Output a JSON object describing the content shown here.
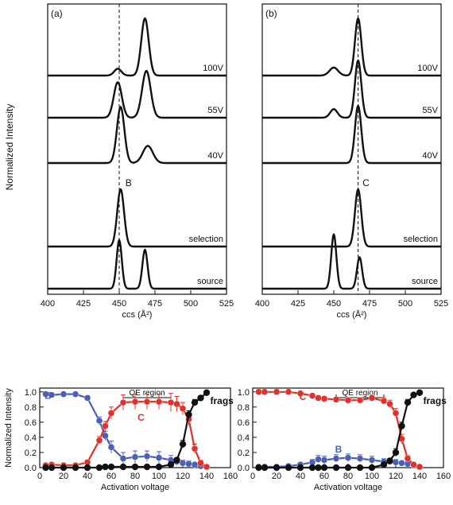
{
  "figure": {
    "shared_ylabel_top": "Normalized Intensity"
  },
  "chart_data": [
    {
      "type": "line",
      "panel": "(a)",
      "xlabel": "ccs (Å²)",
      "xlim": [
        400,
        525
      ],
      "xticks": [
        400,
        425,
        450,
        475,
        500,
        525
      ],
      "reference_line_x": 450,
      "peak_annotation": {
        "label": "B",
        "x": 451
      },
      "traces": [
        {
          "label": "100V",
          "peaks": [
            {
              "x": 449,
              "h": 0.12,
              "w": 2.5
            },
            {
              "x": 468,
              "h": 1.0,
              "w": 2.6
            }
          ]
        },
        {
          "label": "55V",
          "peaks": [
            {
              "x": 449,
              "h": 0.62,
              "w": 2.8
            },
            {
              "x": 469,
              "h": 0.82,
              "w": 3.0
            }
          ]
        },
        {
          "label": "40V",
          "peaks": [
            {
              "x": 451,
              "h": 0.98,
              "w": 2.6
            },
            {
              "x": 470,
              "h": 0.3,
              "w": 3.5
            }
          ]
        },
        {
          "label": "selection",
          "peaks": [
            {
              "x": 451,
              "h": 1.0,
              "w": 2.4
            }
          ]
        },
        {
          "label": "source",
          "peaks": [
            {
              "x": 450,
              "h": 0.85,
              "w": 1.8
            },
            {
              "x": 468,
              "h": 0.68,
              "w": 1.8
            }
          ]
        }
      ]
    },
    {
      "type": "line",
      "panel": "(b)",
      "xlabel": "ccs (Å²)",
      "xlim": [
        400,
        525
      ],
      "xticks": [
        400,
        425,
        450,
        475,
        500,
        525
      ],
      "reference_line_x": 467,
      "peak_annotation": {
        "label": "C",
        "x": 467
      },
      "traces": [
        {
          "label": "100V",
          "peaks": [
            {
              "x": 450,
              "h": 0.14,
              "w": 3.0
            },
            {
              "x": 467,
              "h": 1.0,
              "w": 2.2
            }
          ]
        },
        {
          "label": "55V",
          "peaks": [
            {
              "x": 450,
              "h": 0.15,
              "w": 2.5
            },
            {
              "x": 467,
              "h": 1.0,
              "w": 2.2
            }
          ]
        },
        {
          "label": "40V",
          "peaks": [
            {
              "x": 467,
              "h": 1.0,
              "w": 2.2
            }
          ]
        },
        {
          "label": "selection",
          "peaks": [
            {
              "x": 467,
              "h": 1.0,
              "w": 2.2
            }
          ]
        },
        {
          "label": "source",
          "peaks": [
            {
              "x": 450,
              "h": 0.95,
              "w": 1.8
            },
            {
              "x": 468,
              "h": 0.55,
              "w": 1.8
            }
          ]
        }
      ]
    },
    {
      "type": "scatter",
      "xlabel": "Activation voltage",
      "ylabel": "Normalized Intensity",
      "xlim": [
        0,
        160
      ],
      "ylim": [
        0,
        1.05
      ],
      "xticks": [
        0,
        20,
        40,
        60,
        80,
        100,
        120,
        140,
        160
      ],
      "yticks": [
        "0.0",
        "0.2",
        "0.4",
        "0.6",
        "0.8",
        "1.0"
      ],
      "region": {
        "label": "QE region",
        "x": [
          70,
          110
        ]
      },
      "x": [
        5,
        10,
        20,
        30,
        40,
        50,
        55,
        60,
        70,
        80,
        90,
        100,
        110,
        115,
        120,
        125,
        130,
        135,
        140
      ],
      "series": [
        {
          "name": "B",
          "color": "#4a5fb5",
          "values": [
            0.97,
            0.96,
            0.97,
            0.97,
            0.92,
            0.62,
            0.42,
            0.27,
            0.12,
            0.14,
            0.15,
            0.13,
            0.1,
            0.08,
            0.06,
            0.05,
            0.04,
            0.02,
            0.01
          ],
          "errors": [
            0.02,
            0.02,
            0.02,
            0.02,
            0.03,
            0.05,
            0.06,
            0.08,
            0.08,
            0.08,
            0.07,
            0.08,
            0.06,
            0.05,
            0.04,
            0.04,
            0.03,
            0.02,
            0.01
          ]
        },
        {
          "name": "C",
          "color": "#e0312b",
          "values": [
            0.03,
            0.04,
            0.03,
            0.03,
            0.07,
            0.36,
            0.55,
            0.72,
            0.86,
            0.87,
            0.87,
            0.87,
            0.86,
            0.84,
            0.78,
            0.64,
            0.25,
            0.06,
            0.01
          ],
          "errors": [
            0.02,
            0.02,
            0.02,
            0.02,
            0.03,
            0.05,
            0.06,
            0.08,
            0.1,
            0.1,
            0.1,
            0.1,
            0.12,
            0.1,
            0.08,
            0.08,
            0.06,
            0.04,
            0.02
          ]
        },
        {
          "name": "frags",
          "color": "#111111",
          "values": [
            0.0,
            0.0,
            0.0,
            0.0,
            0.0,
            0.0,
            0.01,
            0.01,
            0.01,
            0.01,
            0.01,
            0.01,
            0.04,
            0.1,
            0.31,
            0.7,
            0.86,
            0.92,
            0.99
          ],
          "errors": [
            0.01,
            0.01,
            0.01,
            0.01,
            0.01,
            0.01,
            0.01,
            0.01,
            0.01,
            0.01,
            0.01,
            0.01,
            0.02,
            0.03,
            0.05,
            0.05,
            0.04,
            0.03,
            0.01
          ]
        }
      ]
    },
    {
      "type": "scatter",
      "xlabel": "Activation voltage",
      "ylabel": "",
      "xlim": [
        0,
        160
      ],
      "ylim": [
        0,
        1.05
      ],
      "xticks": [
        0,
        20,
        40,
        60,
        80,
        100,
        120,
        140,
        160
      ],
      "yticks": [
        "0.0",
        "0.2",
        "0.4",
        "0.6",
        "0.8",
        "1.0"
      ],
      "region": {
        "label": "QE region",
        "x": [
          70,
          110
        ]
      },
      "x": [
        5,
        10,
        20,
        30,
        40,
        50,
        55,
        60,
        70,
        80,
        90,
        100,
        110,
        115,
        120,
        125,
        130,
        135,
        140
      ],
      "series": [
        {
          "name": "B",
          "color": "#4a5fb5",
          "values": [
            0.01,
            0.01,
            0.01,
            0.02,
            0.04,
            0.07,
            0.11,
            0.1,
            0.12,
            0.13,
            0.12,
            0.1,
            0.08,
            0.08,
            0.07,
            0.06,
            0.05,
            0.03,
            0.01
          ],
          "errors": [
            0.01,
            0.01,
            0.01,
            0.02,
            0.03,
            0.04,
            0.05,
            0.05,
            0.05,
            0.05,
            0.05,
            0.05,
            0.04,
            0.04,
            0.04,
            0.03,
            0.03,
            0.02,
            0.01
          ]
        },
        {
          "name": "C",
          "color": "#e0312b",
          "values": [
            1.0,
            1.0,
            1.0,
            1.0,
            0.98,
            0.95,
            0.92,
            0.91,
            0.9,
            0.89,
            0.89,
            0.92,
            0.88,
            0.84,
            0.72,
            0.38,
            0.12,
            0.04,
            0.01
          ],
          "errors": [
            0.01,
            0.01,
            0.01,
            0.01,
            0.02,
            0.02,
            0.03,
            0.03,
            0.03,
            0.03,
            0.03,
            0.03,
            0.04,
            0.05,
            0.06,
            0.06,
            0.04,
            0.02,
            0.01
          ]
        },
        {
          "name": "frags",
          "color": "#111111",
          "values": [
            0.0,
            0.0,
            0.0,
            0.0,
            0.0,
            0.0,
            0.0,
            0.0,
            0.0,
            0.0,
            0.0,
            0.0,
            0.04,
            0.09,
            0.2,
            0.55,
            0.86,
            0.96,
            0.99
          ],
          "errors": [
            0.01,
            0.01,
            0.01,
            0.01,
            0.01,
            0.01,
            0.01,
            0.01,
            0.01,
            0.01,
            0.01,
            0.01,
            0.02,
            0.03,
            0.05,
            0.05,
            0.04,
            0.02,
            0.01
          ]
        }
      ]
    }
  ]
}
